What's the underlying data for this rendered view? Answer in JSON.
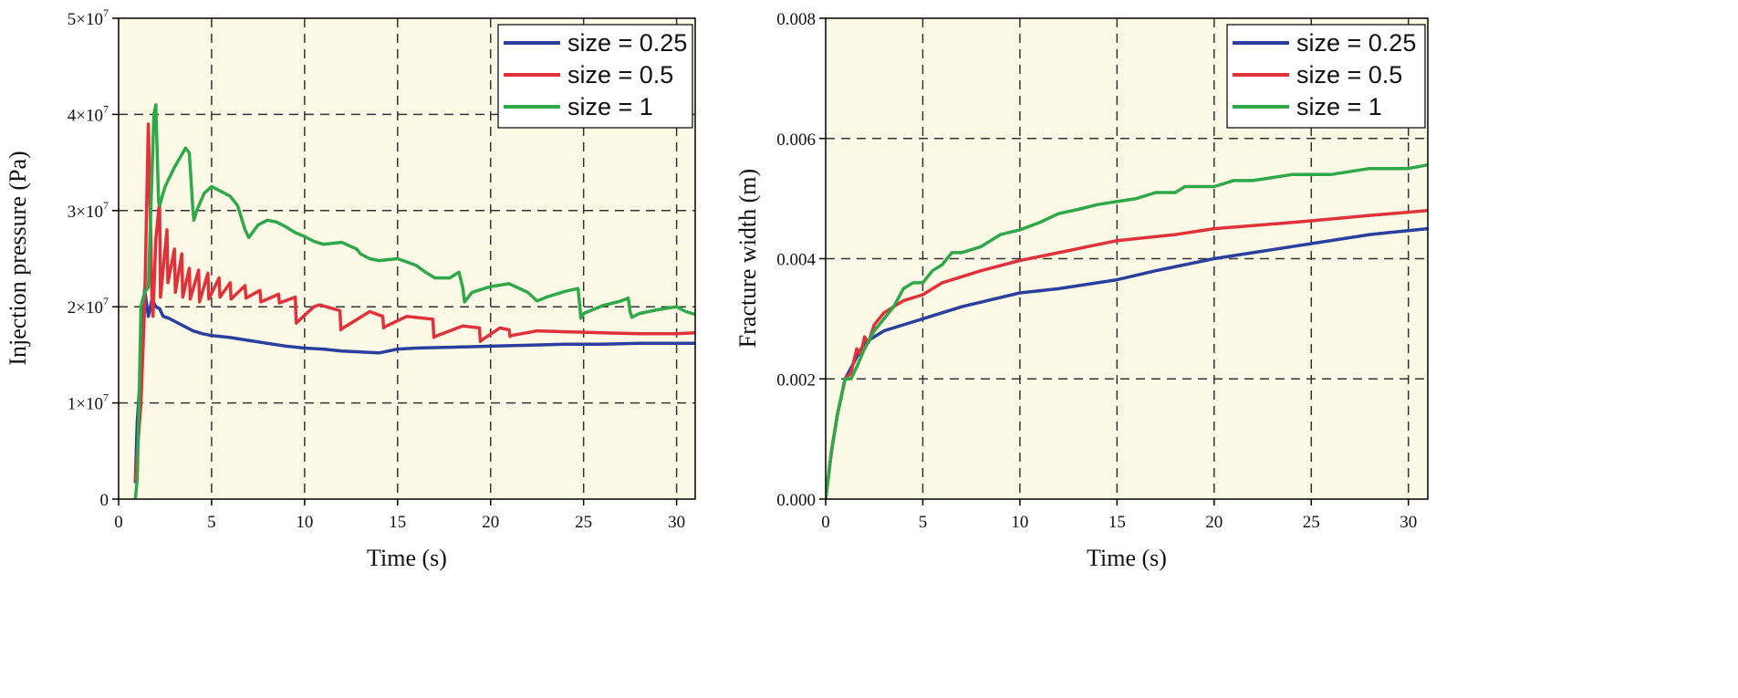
{
  "chart_data": [
    {
      "type": "line",
      "xlabel": "Time (s)",
      "ylabel": "Injection pressure (Pa)",
      "xlim": [
        0,
        31
      ],
      "ylim": [
        0,
        50000000
      ],
      "xticks": [
        0,
        5,
        10,
        15,
        20,
        25,
        30
      ],
      "yticks": [
        0,
        10000000,
        20000000,
        30000000,
        40000000,
        50000000
      ],
      "ytick_labels": [
        {
          "base": "0",
          "exp": ""
        },
        {
          "base": "1×10",
          "exp": "7"
        },
        {
          "base": "2×10",
          "exp": "7"
        },
        {
          "base": "3×10",
          "exp": "7"
        },
        {
          "base": "4×10",
          "exp": "7"
        },
        {
          "base": "5×10",
          "exp": "7"
        }
      ],
      "legend_position": "top-right",
      "series": [
        {
          "name": "size = 0.25",
          "color": "#2b3f9e",
          "x": [
            0.9,
            1.0,
            1.2,
            1.4,
            1.6,
            1.8,
            2.0,
            2.2,
            2.4,
            2.7,
            3.0,
            3.5,
            4.0,
            4.5,
            5.0,
            6.0,
            7.0,
            8.0,
            9.0,
            10.0,
            11.0,
            12.0,
            13.0,
            14.0,
            15.0,
            16.0,
            18.0,
            20.0,
            22.0,
            24.0,
            26.0,
            28.0,
            30.0,
            31.0
          ],
          "y": [
            1800000,
            8000000,
            14000000,
            21800000,
            19000000,
            20800000,
            20000000,
            19800000,
            19000000,
            18800000,
            18500000,
            18000000,
            17500000,
            17200000,
            17000000,
            16800000,
            16500000,
            16200000,
            15900000,
            15700000,
            15600000,
            15400000,
            15300000,
            15200000,
            15600000,
            15700000,
            15800000,
            15900000,
            16000000,
            16100000,
            16100000,
            16200000,
            16200000,
            16200000
          ]
        },
        {
          "name": "size = 0.5",
          "color": "#e0323a",
          "x": [
            0.9,
            1.2,
            1.4,
            1.6,
            1.7,
            1.8,
            1.85,
            2.0,
            2.2,
            2.25,
            2.6,
            2.65,
            3.0,
            3.05,
            3.4,
            3.45,
            3.8,
            3.85,
            4.3,
            4.35,
            4.8,
            4.85,
            5.4,
            5.45,
            6.0,
            6.05,
            6.8,
            6.85,
            7.6,
            7.65,
            8.6,
            8.65,
            9.5,
            9.55,
            9.6,
            10.5,
            10.8,
            11.9,
            11.95,
            12.0,
            13.5,
            14.2,
            14.25,
            14.3,
            15.5,
            16.9,
            16.95,
            17.0,
            18.5,
            19.4,
            19.45,
            19.5,
            20.5,
            21.0,
            21.05,
            21.1,
            22.5,
            24.0,
            26.0,
            28.0,
            30.0,
            31.0
          ],
          "y": [
            2000000,
            10000000,
            20000000,
            39000000,
            30000000,
            20500000,
            19000000,
            27000000,
            31000000,
            21000000,
            28000000,
            22500000,
            26000000,
            21500000,
            25500000,
            21000000,
            24000000,
            20800000,
            23800000,
            20500000,
            23500000,
            20800000,
            23000000,
            21000000,
            22500000,
            20800000,
            22200000,
            20900000,
            21700000,
            20500000,
            21300000,
            20400000,
            21000000,
            18300000,
            18400000,
            20000000,
            20200000,
            19600000,
            17600000,
            17700000,
            19500000,
            19000000,
            17800000,
            17900000,
            19000000,
            18700000,
            16800000,
            16900000,
            18000000,
            17800000,
            16400000,
            16500000,
            17800000,
            17600000,
            16900000,
            17000000,
            17500000,
            17400000,
            17300000,
            17200000,
            17200000,
            17300000
          ]
        },
        {
          "name": "size = 1",
          "color": "#2fa84a",
          "x": [
            0.9,
            1.0,
            1.1,
            1.2,
            1.4,
            1.6,
            1.9,
            2.0,
            2.15,
            2.2,
            2.5,
            3.0,
            3.6,
            3.8,
            4.0,
            4.05,
            4.2,
            4.6,
            5.0,
            5.5,
            6.0,
            6.4,
            6.8,
            7.0,
            7.5,
            8.0,
            8.5,
            9.0,
            9.5,
            10.0,
            10.5,
            11.0,
            12.0,
            12.8,
            13.0,
            13.5,
            14.0,
            15.0,
            16.0,
            16.5,
            17.0,
            17.8,
            18.3,
            18.5,
            18.6,
            19.0,
            20.0,
            21.0,
            22.0,
            22.5,
            23.0,
            24.0,
            24.7,
            24.8,
            24.85,
            25.0,
            26.0,
            27.0,
            27.4,
            27.5,
            27.6,
            28.0,
            29.0,
            30.0,
            30.5,
            31.0
          ],
          "y": [
            0,
            2000000,
            10000000,
            20000000,
            21500000,
            22000000,
            40000000,
            41000000,
            31000000,
            30500000,
            32500000,
            34500000,
            36500000,
            36000000,
            30000000,
            29000000,
            30000000,
            31800000,
            32500000,
            32000000,
            31500000,
            30500000,
            28000000,
            27200000,
            28500000,
            29000000,
            28800000,
            28300000,
            27700000,
            27300000,
            26800000,
            26500000,
            26700000,
            26000000,
            25500000,
            25000000,
            24800000,
            25000000,
            24300000,
            23600000,
            23000000,
            23000000,
            23600000,
            22000000,
            20500000,
            21500000,
            22100000,
            22400000,
            21500000,
            20600000,
            21000000,
            21600000,
            21900000,
            20000000,
            18800000,
            19300000,
            20100000,
            20600000,
            20900000,
            19500000,
            18900000,
            19300000,
            19700000,
            20000000,
            19500000,
            19200000
          ]
        }
      ]
    },
    {
      "type": "line",
      "xlabel": "Time (s)",
      "ylabel": "Fracture width (m)",
      "xlim": [
        0,
        31
      ],
      "ylim": [
        0,
        0.008
      ],
      "xticks": [
        0,
        5,
        10,
        15,
        20,
        25,
        30
      ],
      "yticks": [
        0,
        0.002,
        0.004,
        0.006,
        0.008
      ],
      "ytick_labels": [
        {
          "base": "0.000",
          "exp": ""
        },
        {
          "base": "0.002",
          "exp": ""
        },
        {
          "base": "0.004",
          "exp": ""
        },
        {
          "base": "0.006",
          "exp": ""
        },
        {
          "base": "0.008",
          "exp": ""
        }
      ],
      "legend_position": "top-right",
      "series": [
        {
          "name": "size = 0.25",
          "color": "#2b3f9e",
          "x": [
            0,
            0.3,
            0.6,
            1.0,
            1.5,
            2.0,
            3.0,
            4.0,
            5.0,
            7.0,
            10.0,
            12.0,
            15.0,
            17.0,
            20.0,
            22.0,
            25.0,
            28.0,
            31.0
          ],
          "y": [
            0,
            0.0008,
            0.0014,
            0.002,
            0.0023,
            0.0026,
            0.0028,
            0.0029,
            0.003,
            0.0032,
            0.00343,
            0.0035,
            0.00365,
            0.0038,
            0.004,
            0.0041,
            0.00425,
            0.0044,
            0.0045
          ]
        },
        {
          "name": "size = 0.5",
          "color": "#e0323a",
          "x": [
            0,
            0.3,
            0.6,
            1.0,
            1.3,
            1.6,
            1.8,
            2.0,
            2.2,
            2.5,
            3.0,
            3.5,
            4.0,
            5.0,
            6.0,
            7.0,
            8.0,
            10.0,
            12.0,
            15.0,
            18.0,
            20.0,
            22.0,
            25.0,
            28.0,
            31.0
          ],
          "y": [
            0,
            0.0008,
            0.0014,
            0.002,
            0.0021,
            0.0025,
            0.0024,
            0.0027,
            0.0026,
            0.0029,
            0.0031,
            0.0032,
            0.0033,
            0.0034,
            0.0036,
            0.0037,
            0.0038,
            0.00397,
            0.0041,
            0.0043,
            0.0044,
            0.0045,
            0.00455,
            0.00463,
            0.00472,
            0.0048
          ]
        },
        {
          "name": "size = 1",
          "color": "#2fa84a",
          "x": [
            0,
            0.3,
            0.6,
            1.0,
            1.3,
            1.6,
            2.0,
            2.5,
            3.0,
            3.5,
            4.0,
            4.5,
            5.0,
            5.5,
            6.0,
            6.5,
            7.0,
            8.0,
            9.0,
            10.0,
            11.0,
            12.0,
            13.0,
            14.0,
            15.0,
            16.0,
            17.0,
            18.0,
            18.5,
            20.0,
            21.0,
            22.0,
            24.0,
            25.0,
            26.0,
            28.0,
            30.0,
            31.0
          ],
          "y": [
            0,
            0.0008,
            0.0014,
            0.002,
            0.002,
            0.0022,
            0.0025,
            0.0028,
            0.003,
            0.0032,
            0.0035,
            0.0036,
            0.0036,
            0.0038,
            0.0039,
            0.0041,
            0.0041,
            0.0042,
            0.0044,
            0.00448,
            0.0046,
            0.00475,
            0.00482,
            0.0049,
            0.00495,
            0.005,
            0.0051,
            0.0051,
            0.0052,
            0.0052,
            0.0053,
            0.0053,
            0.0054,
            0.0054,
            0.0054,
            0.0055,
            0.0055,
            0.00556
          ]
        }
      ]
    }
  ]
}
